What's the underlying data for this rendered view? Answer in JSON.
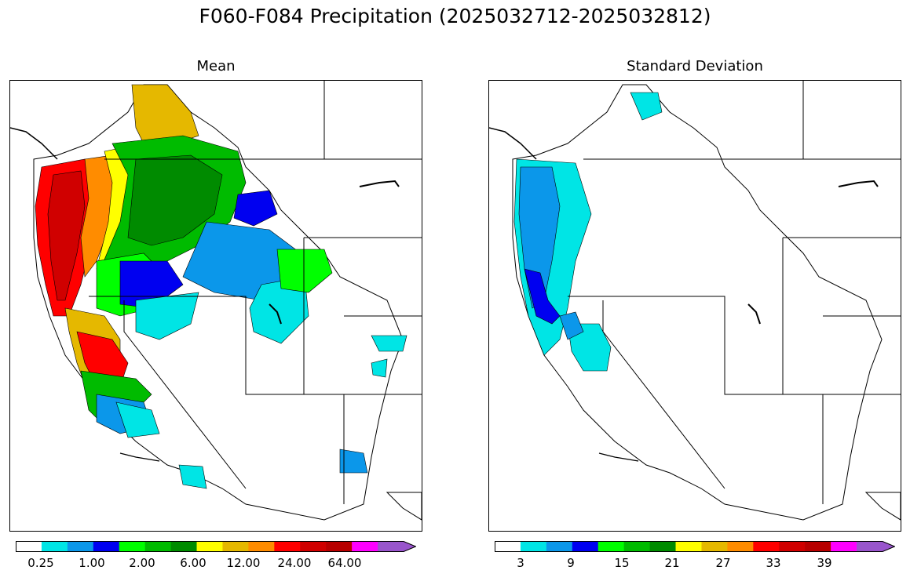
{
  "figure": {
    "title": "F060-F084 Precipitation (2025032712-2025032812)"
  },
  "panels": [
    {
      "title": "Mean",
      "colorbar": {
        "colors": [
          "#ffffff",
          "#00e5e5",
          "#0b97ea",
          "#0000f0",
          "#00ff00",
          "#00bb00",
          "#008b00",
          "#ffff00",
          "#e5b800",
          "#ff8c00",
          "#ff0000",
          "#d00000",
          "#b70000",
          "#ff00ff",
          "#9955cc"
        ],
        "labels": [
          "0.25",
          "1.00",
          "2.00",
          "6.00",
          "12.00",
          "24.00",
          "64.00"
        ],
        "label_boundaries": [
          1,
          3,
          5,
          7,
          9,
          11,
          13
        ],
        "extend": "max"
      }
    },
    {
      "title": "Standard Deviation",
      "colorbar": {
        "colors": [
          "#ffffff",
          "#00e5e5",
          "#0b97ea",
          "#0000f0",
          "#00ff00",
          "#00bb00",
          "#008b00",
          "#ffff00",
          "#e5b800",
          "#ff8c00",
          "#ff0000",
          "#d00000",
          "#b70000",
          "#ff00ff",
          "#9955cc"
        ],
        "labels": [
          "3",
          "9",
          "15",
          "21",
          "27",
          "33",
          "39"
        ],
        "label_positions": [
          1.5,
          3.5,
          5.5,
          7.5,
          9.5,
          11.5,
          13.5
        ],
        "extend": "max"
      }
    }
  ]
}
